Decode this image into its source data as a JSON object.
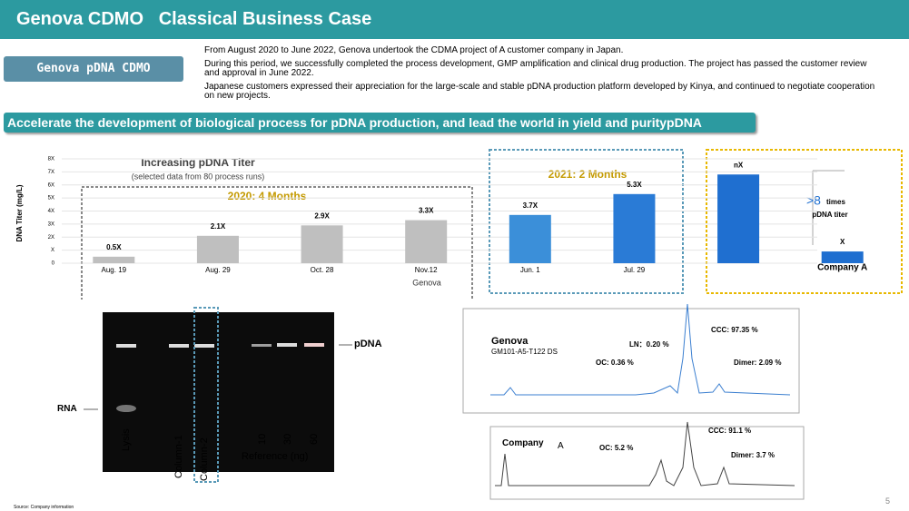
{
  "header": {
    "title": "Genova CDMO   Classical Business Case"
  },
  "tag": "Genova pDNA CDMO",
  "paragraphs": [
    "From August 2020 to June 2022, Genova undertook the CDMA project of A customer company in Japan.",
    "During this period, we successfully completed the process development, GMP amplification and clinical drug production. The project has passed the customer review and approval in June 2022.",
    "Japanese customers expressed their appreciation for the large-scale and stable pDNA production platform developed by Kinya, and continued to negotiate cooperation on new projects."
  ],
  "banner": "Accelerate the development of biological process for pDNA production, and lead the world in yield and puritypDNA",
  "chart_data": {
    "type": "bar",
    "title": "Increasing pDNA Titer",
    "subtitle": "(selected data from 80 process runs)",
    "y_label": "DNA Titer (mg/L)",
    "categories": [
      "Aug. 19",
      "Aug. 29",
      "Oct. 28",
      "Nov.12",
      "Jun. 1",
      "Jul. 29",
      null,
      "Company A"
    ],
    "values": [
      0.5,
      2.1,
      2.9,
      3.3,
      3.7,
      5.3,
      6.8,
      0.9
    ],
    "value_labels": [
      "0.5X",
      "2.1X",
      "2.9X",
      "3.3X",
      "3.7X",
      "5.3X",
      "nX",
      "X"
    ],
    "colors": [
      "#bfbfbf",
      "#bfbfbf",
      "#bfbfbf",
      "#bfbfbf",
      "#3b8fd9",
      "#2a7bd6",
      "#1f6fd0",
      "#1f6fd0"
    ],
    "ylim": [
      0,
      8
    ],
    "yticks": [
      0,
      {
        "value": 1,
        "label": "X"
      },
      {
        "value": 2,
        "label": "2X"
      },
      {
        "value": 3,
        "label": "3X"
      },
      {
        "value": 4,
        "label": "4X"
      },
      {
        "value": 5,
        "label": "5X"
      },
      {
        "value": 6,
        "label": "6X"
      },
      {
        "value": 7,
        "label": "7X"
      },
      {
        "value": 8,
        "label": "8X"
      }
    ],
    "grid": true,
    "group_labels": [
      "2020: 4 Months",
      "2021: 2 Months"
    ],
    "x_group": "Genova",
    "annotation": {
      "symbol": ">8",
      "text": "times",
      "sub": "pDNA titer"
    }
  },
  "gel": {
    "band": "pDNA",
    "rna": "RNA",
    "lanes": [
      "Lysis",
      "Column-1",
      "Column-2",
      "10",
      "30",
      "60"
    ],
    "reference": "Reference (ng)"
  },
  "hplc": {
    "genova": {
      "name": "Genova",
      "sample": "GM101-A5-T122  DS",
      "ln": "LN：0.20 %",
      "ccc": "CCC: 97.35 %",
      "oc": "OC: 0.36 %",
      "dimer": "Dimer: 2.09 %"
    },
    "company": {
      "name": "Company",
      "suffix": "A",
      "oc": "OC: 5.2 %",
      "ccc": "CCC: 91.1 %",
      "dimer": "Dimer: 3.7 %"
    }
  },
  "footer": {
    "source": "Source: Company information",
    "page": "5"
  }
}
